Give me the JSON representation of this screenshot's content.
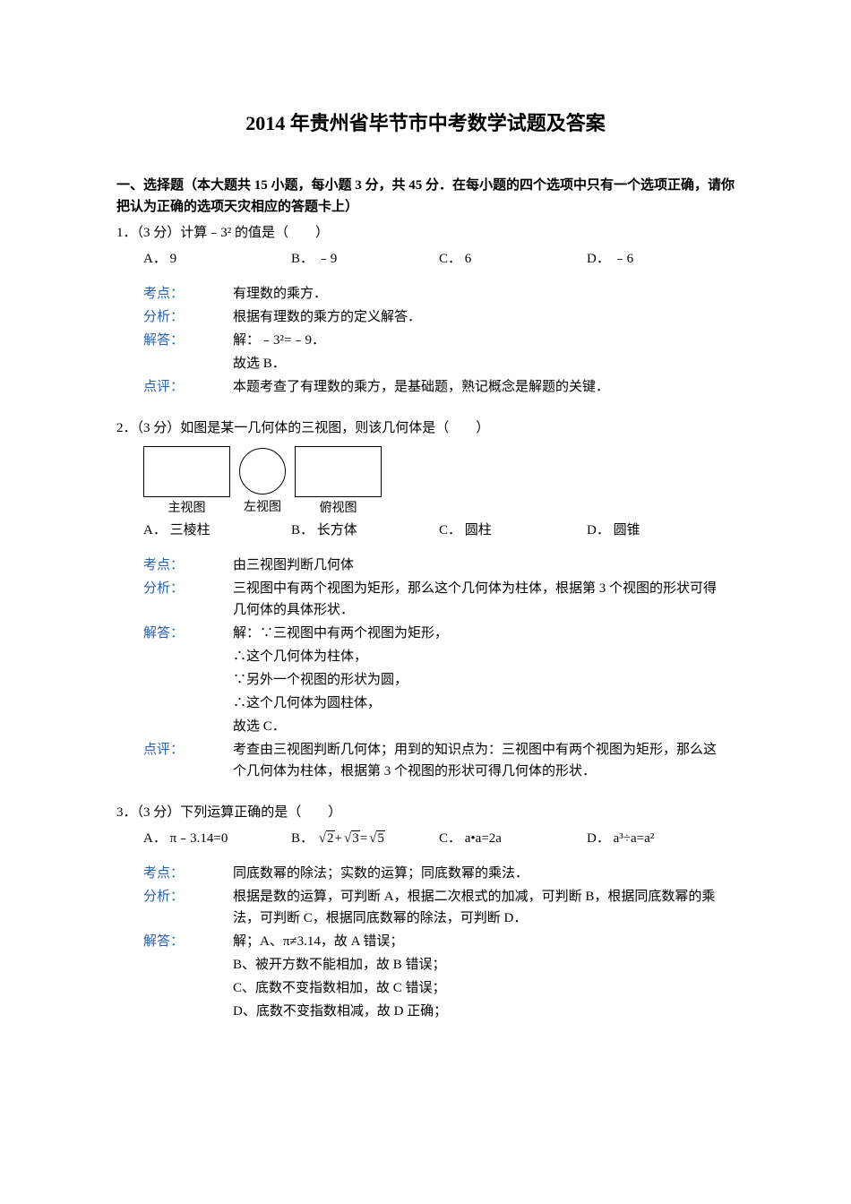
{
  "title": "2014 年贵州省毕节市中考数学试题及答案",
  "section_header": "一、选择题（本大题共 15 小题，每小题 3 分，共 45 分．在每小题的四个选项中只有一个选项正确，请你把认为正确的选项天灾相应的答题卡上）",
  "q1": {
    "stem": "1．（3 分）计算﹣3² 的值是（　　）",
    "optA": "A． 9",
    "optB": "B． ﹣9",
    "optC": "C． 6",
    "optD": "D． ﹣6",
    "kaodian_label": "考点：",
    "kaodian_text": "有理数的乘方．",
    "fenxi_label": "分析：",
    "fenxi_text": "根据有理数的乘方的定义解答．",
    "jieda_label": "解答：",
    "jieda_line1": "解：﹣3²=﹣9．",
    "jieda_line2": "故选 B．",
    "dianping_label": "点评：",
    "dianping_text": "本题考查了有理数的乘方，是基础题，熟记概念是解题的关键．"
  },
  "q2": {
    "stem": "2．（3 分）如图是某一几何体的三视图，则该几何体是（　　）",
    "view1": "主视图",
    "view2": "左视图",
    "view3": "俯视图",
    "optA": "A． 三棱柱",
    "optB": "B． 长方体",
    "optC": "C． 圆柱",
    "optD": "D． 圆锥",
    "kaodian_label": "考点：",
    "kaodian_text": "由三视图判断几何体",
    "fenxi_label": "分析：",
    "fenxi_text": "三视图中有两个视图为矩形，那么这个几何体为柱体，根据第 3 个视图的形状可得几何体的具体形状．",
    "jieda_label": "解答：",
    "jieda_line1": "解：∵三视图中有两个视图为矩形，",
    "jieda_line2": "∴这个几何体为柱体，",
    "jieda_line3": "∵另外一个视图的形状为圆，",
    "jieda_line4": "∴这个几何体为圆柱体，",
    "jieda_line5": "故选 C．",
    "dianping_label": "点评：",
    "dianping_text": "考查由三视图判断几何体；用到的知识点为：三视图中有两个视图为矩形，那么这个几何体为柱体，根据第 3 个视图的形状可得几何体的形状．"
  },
  "q3": {
    "stem": "3．（3 分）下列运算正确的是（　　）",
    "optA_pre": "A． π﹣3.14=0",
    "optB_pre": "B． ",
    "optB_r1": "2",
    "optB_plus": "+",
    "optB_r2": "3",
    "optB_eq": "=",
    "optB_r3": "5",
    "optC": "C． a•a=2a",
    "optD": "D． a³÷a=a²",
    "kaodian_label": "考点：",
    "kaodian_text": "同底数幂的除法；实数的运算；同底数幂的乘法．",
    "fenxi_label": "分析：",
    "fenxi_text": "根据是数的运算，可判断 A，根据二次根式的加减，可判断 B，根据同底数幂的乘法，可判断 C，根据同底数幂的除法，可判断 D．",
    "jieda_label": "解答：",
    "jieda_line1": "解；A、π≠3.14，故 A 错误；",
    "jieda_line2": "B、被开方数不能相加，故 B 错误；",
    "jieda_line3": "C、底数不变指数相加，故 C 错误；",
    "jieda_line4": "D、底数不变指数相减，故 D 正确；"
  },
  "colors": {
    "label_color": "#2861b0",
    "text_color": "#000000",
    "background": "#ffffff"
  }
}
